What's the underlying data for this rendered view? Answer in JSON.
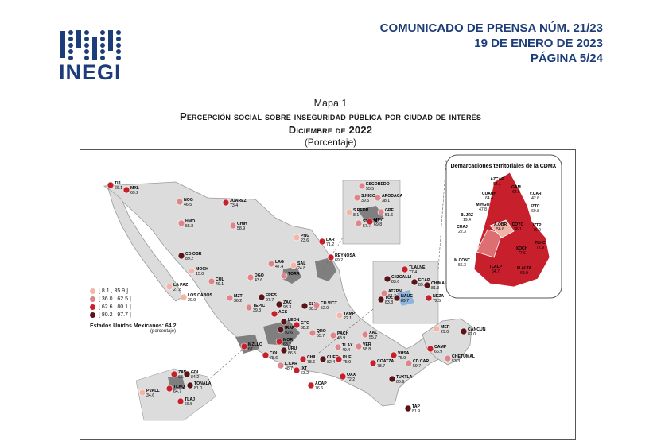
{
  "header": {
    "logo_text": "INEGI",
    "line1": "COMUNICADO DE PRENSA NÚM. 21/23",
    "line2": "19 DE ENERO DE 2023",
    "line3": "PÁGINA 5/24"
  },
  "map": {
    "label": "Mapa 1",
    "title": "Percepción social sobre inseguridad pública por ciudad de interés",
    "date": "Diciembre de 2022",
    "unit": "(Porcentaje)",
    "legend": {
      "items": [
        {
          "label": "[ 8.1 , 35.9 ]",
          "color": "#f3b6a6"
        },
        {
          "label": "[ 36.0 , 62.5 ]",
          "color": "#dd8589"
        },
        {
          "label": "[ 62.6 , 80.1 ]",
          "color": "#c7202c"
        },
        {
          "label": "[ 80.2 , 97.7 ]",
          "color": "#5a1418"
        }
      ],
      "national_label": "Estados Unidos Mexicanos: 64.2",
      "national_unit": "(porcentaje)"
    },
    "cdmx_title": "Demarcaciones territoriales de la CDMX",
    "colors": {
      "land": "#dcdcdc",
      "metro": "#7f7f7f",
      "cdmx_dark": "#c7202c",
      "cdmx_mid": "#dd6f73",
      "cdmx_light": "#f0b3a6",
      "water": "#8fb4dc"
    },
    "cities": [
      {
        "id": "tij",
        "name": "TIJ",
        "value": "66.1",
        "cls": 3
      },
      {
        "id": "mxl",
        "name": "MXL",
        "value": "69.2",
        "cls": 3
      },
      {
        "id": "nog",
        "name": "NOG",
        "value": "46.5",
        "cls": 2
      },
      {
        "id": "juarez",
        "name": "JUAREZ",
        "value": "73.4",
        "cls": 3
      },
      {
        "id": "hmo",
        "name": "HMO",
        "value": "55.8",
        "cls": 2
      },
      {
        "id": "chih",
        "name": "CHIH",
        "value": "58.9",
        "cls": 2
      },
      {
        "id": "cdobr",
        "name": "CD.OBR",
        "value": "89.2",
        "cls": 4
      },
      {
        "id": "moch",
        "name": "MOCH",
        "value": "15.0",
        "cls": 1
      },
      {
        "id": "cul",
        "name": "CUL",
        "value": "49.1",
        "cls": 2
      },
      {
        "id": "lapaz",
        "name": "LA PAZ",
        "value": "27.8",
        "cls": 1
      },
      {
        "id": "loscabos",
        "name": "LOS CABOS",
        "value": "20.9",
        "cls": 1
      },
      {
        "id": "mzt",
        "name": "MZT",
        "value": "36.2",
        "cls": 2
      },
      {
        "id": "dgo",
        "name": "DGO",
        "value": "43.6",
        "cls": 2
      },
      {
        "id": "lag",
        "name": "LAG",
        "value": "47.4",
        "cls": 2
      },
      {
        "id": "torr",
        "name": "TORR",
        "value": "",
        "cls": 2
      },
      {
        "id": "sal",
        "name": "SAL",
        "value": "24.8",
        "cls": 1
      },
      {
        "id": "png",
        "name": "PNG",
        "value": "23.6",
        "cls": 1
      },
      {
        "id": "lar",
        "name": "LAR",
        "value": "71.2",
        "cls": 3
      },
      {
        "id": "reynosa",
        "name": "REYNOSA",
        "value": "69.2",
        "cls": 3
      },
      {
        "id": "escobedo",
        "name": "ESCOBEDO",
        "value": "55.5",
        "cls": 2
      },
      {
        "id": "snico",
        "name": "S.NICO",
        "value": "39.5",
        "cls": 2
      },
      {
        "id": "apodaca",
        "name": "APODACA",
        "value": "38.1",
        "cls": 2
      },
      {
        "id": "spedr",
        "name": "S.PEDR",
        "value": "8.1",
        "cls": 1
      },
      {
        "id": "gpe",
        "name": "GPE",
        "value": "51.6",
        "cls": 2
      },
      {
        "id": "stacat",
        "name": "STA.CAT",
        "value": "57.7",
        "cls": 2
      },
      {
        "id": "mty",
        "name": "MTY",
        "value": "69.8",
        "cls": 3
      },
      {
        "id": "fres",
        "name": "FRES",
        "value": "97.7",
        "cls": 4
      },
      {
        "id": "tepic",
        "name": "TEPIC",
        "value": "39.3",
        "cls": 2
      },
      {
        "id": "zac",
        "name": "ZAC",
        "value": "93.3",
        "cls": 4
      },
      {
        "id": "slp",
        "name": "SLP",
        "value": "80.5",
        "cls": 4
      },
      {
        "id": "cdvict",
        "name": "CD.VICT",
        "value": "52.0",
        "cls": 2
      },
      {
        "id": "tamp",
        "name": "TAMP",
        "value": "22.1",
        "cls": 1
      },
      {
        "id": "ags",
        "name": "AGS",
        "value": "",
        "cls": 3
      },
      {
        "id": "leon",
        "name": "LEON",
        "value": "",
        "cls": 4
      },
      {
        "id": "gto",
        "name": "GTO",
        "value": "68.2",
        "cls": 3
      },
      {
        "id": "irap",
        "name": "IRAP",
        "value": "92.6",
        "cls": 4
      },
      {
        "id": "qro",
        "name": "QRO",
        "value": "55.7",
        "cls": 2
      },
      {
        "id": "pach",
        "name": "PACH",
        "value": "48.9",
        "cls": 2
      },
      {
        "id": "xal",
        "name": "XAL",
        "value": "55.7",
        "cls": 2
      },
      {
        "id": "tlax",
        "name": "TLAX",
        "value": "49.4",
        "cls": 2
      },
      {
        "id": "ver",
        "name": "VER",
        "value": "58.8",
        "cls": 2
      },
      {
        "id": "mor",
        "name": "MOR",
        "value": "68.2",
        "cls": 3
      },
      {
        "id": "uru",
        "name": "URU",
        "value": "86.5",
        "cls": 4
      },
      {
        "id": "mzllo",
        "name": "MZLLO",
        "value": "67.1",
        "cls": 3
      },
      {
        "id": "col",
        "name": "COL",
        "value": "75.6",
        "cls": 3
      },
      {
        "id": "lcar",
        "name": "L.CAR",
        "value": "48.7",
        "cls": 2
      },
      {
        "id": "ixt",
        "name": "IXT",
        "value": "63.2",
        "cls": 3
      },
      {
        "id": "chil",
        "name": "CHIL",
        "value": "78.6",
        "cls": 3
      },
      {
        "id": "cuer",
        "name": "CUER",
        "value": "82.4",
        "cls": 4
      },
      {
        "id": "pue",
        "name": "PUE",
        "value": "75.9",
        "cls": 3
      },
      {
        "id": "acap",
        "name": "ACAP",
        "value": "76.6",
        "cls": 3
      },
      {
        "id": "oax",
        "name": "OAX",
        "value": "72.2",
        "cls": 3
      },
      {
        "id": "coatza",
        "name": "COATZA",
        "value": "78.7",
        "cls": 3
      },
      {
        "id": "vhsa",
        "name": "VHSA",
        "value": "75.9",
        "cls": 3
      },
      {
        "id": "cdcar",
        "name": "CD.CAR",
        "value": "59.7",
        "cls": 2
      },
      {
        "id": "tuxtla",
        "name": "TUXTLA",
        "value": "80.9",
        "cls": 4
      },
      {
        "id": "tap",
        "name": "TAP",
        "value": "81.9",
        "cls": 4
      },
      {
        "id": "camp",
        "name": "CAMP",
        "value": "66.9",
        "cls": 3
      },
      {
        "id": "mer",
        "name": "MER",
        "value": "29.0",
        "cls": 1
      },
      {
        "id": "cancun",
        "name": "CANCUN",
        "value": "82.0",
        "cls": 4
      },
      {
        "id": "chetumal",
        "name": "CHETUMAL",
        "value": "53.3",
        "cls": 2
      },
      {
        "id": "tlalne",
        "name": "TLALNE",
        "value": "77.4",
        "cls": 3
      },
      {
        "id": "cizcalli",
        "name": "C.IZCALLI",
        "value": "83.6",
        "cls": 4
      },
      {
        "id": "atzpn",
        "name": "ATZPN",
        "value": "61.3",
        "cls": 2
      },
      {
        "id": "ecap",
        "name": "ECAP",
        "value": "89.6",
        "cls": 4
      },
      {
        "id": "chimal",
        "name": "CHIMAL",
        "value": "81.3",
        "cls": 4
      },
      {
        "id": "neza",
        "name": "NEZA",
        "value": "72.5",
        "cls": 3
      },
      {
        "id": "tol",
        "name": "TOL",
        "value": "83.8",
        "cls": 4
      },
      {
        "id": "nauc",
        "name": "NAUC",
        "value": "89.7",
        "cls": 4
      },
      {
        "id": "zap",
        "name": "ZAP",
        "value": "62.7",
        "cls": 3
      },
      {
        "id": "gdl",
        "name": "GDL",
        "value": "84.2",
        "cls": 4
      },
      {
        "id": "tonala",
        "name": "TONALA",
        "value": "81.0",
        "cls": 4
      },
      {
        "id": "tlaq",
        "name": "TLAQ",
        "value": "64.7",
        "cls": 3
      },
      {
        "id": "tlaj",
        "name": "TLAJ",
        "value": "66.5",
        "cls": 3
      },
      {
        "id": "pvall",
        "name": "PVALL",
        "value": "34.6",
        "cls": 1
      }
    ],
    "cdmx": [
      {
        "id": "azcap",
        "name": "AZCAP",
        "value": "54.1"
      },
      {
        "id": "gam",
        "name": "GAM",
        "value": "64.9"
      },
      {
        "id": "vcar",
        "name": "V.CAR",
        "value": "42.6"
      },
      {
        "id": "cuauh",
        "name": "CUAUH",
        "value": "64.4"
      },
      {
        "id": "mhgo",
        "name": "M.HGO",
        "value": "47.8"
      },
      {
        "id": "iztc",
        "name": "IZTC",
        "value": "69.8"
      },
      {
        "id": "bjrz",
        "name": "B. JRZ",
        "value": "19.4"
      },
      {
        "id": "cuaj",
        "name": "CUAJ",
        "value": "22.3"
      },
      {
        "id": "aobr",
        "name": "A.OBR",
        "value": "56.6"
      },
      {
        "id": "coyo",
        "name": "COYO",
        "value": "36.1"
      },
      {
        "id": "iztp",
        "name": "IZTP",
        "value": "76.0"
      },
      {
        "id": "tlhc",
        "name": "TLHC",
        "value": "72.9"
      },
      {
        "id": "xoch",
        "name": "XOCH",
        "value": "77.6"
      },
      {
        "id": "mcont",
        "name": "M.CONT",
        "value": "56.3"
      },
      {
        "id": "tlalp",
        "name": "TLALP",
        "value": "64.7"
      },
      {
        "id": "malta",
        "name": "M.ALTA",
        "value": "68.9"
      }
    ]
  }
}
